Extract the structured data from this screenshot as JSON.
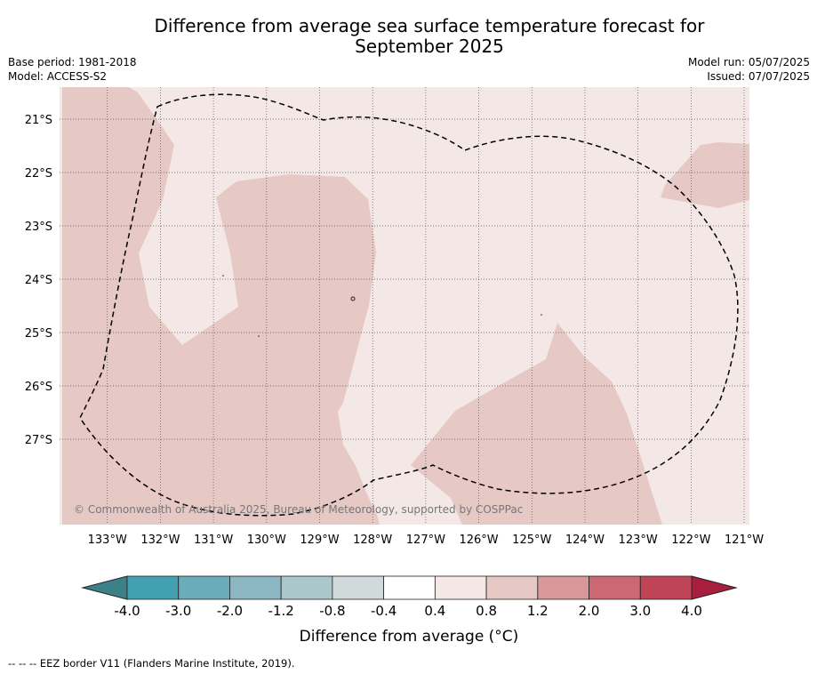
{
  "header": {
    "title_line1": "Difference from average sea surface temperature forecast for",
    "title_line2": "September 2025",
    "base_period": "Base period: 1981-2018",
    "model": "Model: ACCESS-S2",
    "model_run": "Model run: 05/07/2025",
    "issued": "Issued: 07/07/2025"
  },
  "map": {
    "copyright": "© Commonwealth of Australia 2025, Bureau of Meteorology, supported by COSPPac"
  },
  "colors": {
    "bin_0p4_0p8": "#f4e8e6",
    "bin_0p8_1p2": "#e6c8c4",
    "eez_line": "#000000",
    "grid": "#555555"
  },
  "chart_data": {
    "type": "heatmap",
    "title": "Difference from average sea surface temperature forecast for September 2025",
    "x_axis": {
      "range": [
        -133.9,
        -120.9
      ],
      "ticks": [
        -133,
        -132,
        -131,
        -130,
        -129,
        -128,
        -127,
        -126,
        -125,
        -124,
        -123,
        -122,
        -121
      ],
      "tick_labels": [
        "133°W",
        "132°W",
        "131°W",
        "130°W",
        "129°W",
        "128°W",
        "127°W",
        "126°W",
        "125°W",
        "124°W",
        "123°W",
        "122°W",
        "121°W"
      ]
    },
    "y_axis": {
      "range": [
        -28.6,
        -20.4
      ],
      "ticks": [
        -21,
        -22,
        -23,
        -24,
        -25,
        -26,
        -27
      ],
      "tick_labels": [
        "21°S",
        "22°S",
        "23°S",
        "24°S",
        "25°S",
        "26°S",
        "27°S"
      ]
    },
    "grid": true,
    "field_levels_present": [
      "0.4 to 0.8",
      "0.8 to 1.2"
    ],
    "colorbar": {
      "label": "Difference from average (°C)",
      "ticks": [
        "-4.0",
        "-3.0",
        "-2.0",
        "-1.2",
        "-0.8",
        "-0.4",
        "0.4",
        "0.8",
        "1.2",
        "2.0",
        "3.0",
        "4.0"
      ],
      "colors": [
        "#43a0b0",
        "#6aacba",
        "#8bb6c2",
        "#abc7cb",
        "#d1dadb",
        "#ffffff",
        "#f4e8e6",
        "#e6c8c4",
        "#d9969b",
        "#cc6872",
        "#bf4556"
      ],
      "under_color": "#3c8088",
      "over_color": "#a81e3c"
    },
    "legend": "-- -- -- EEZ border V11 (Flanders Marine Institute, 2019)."
  }
}
